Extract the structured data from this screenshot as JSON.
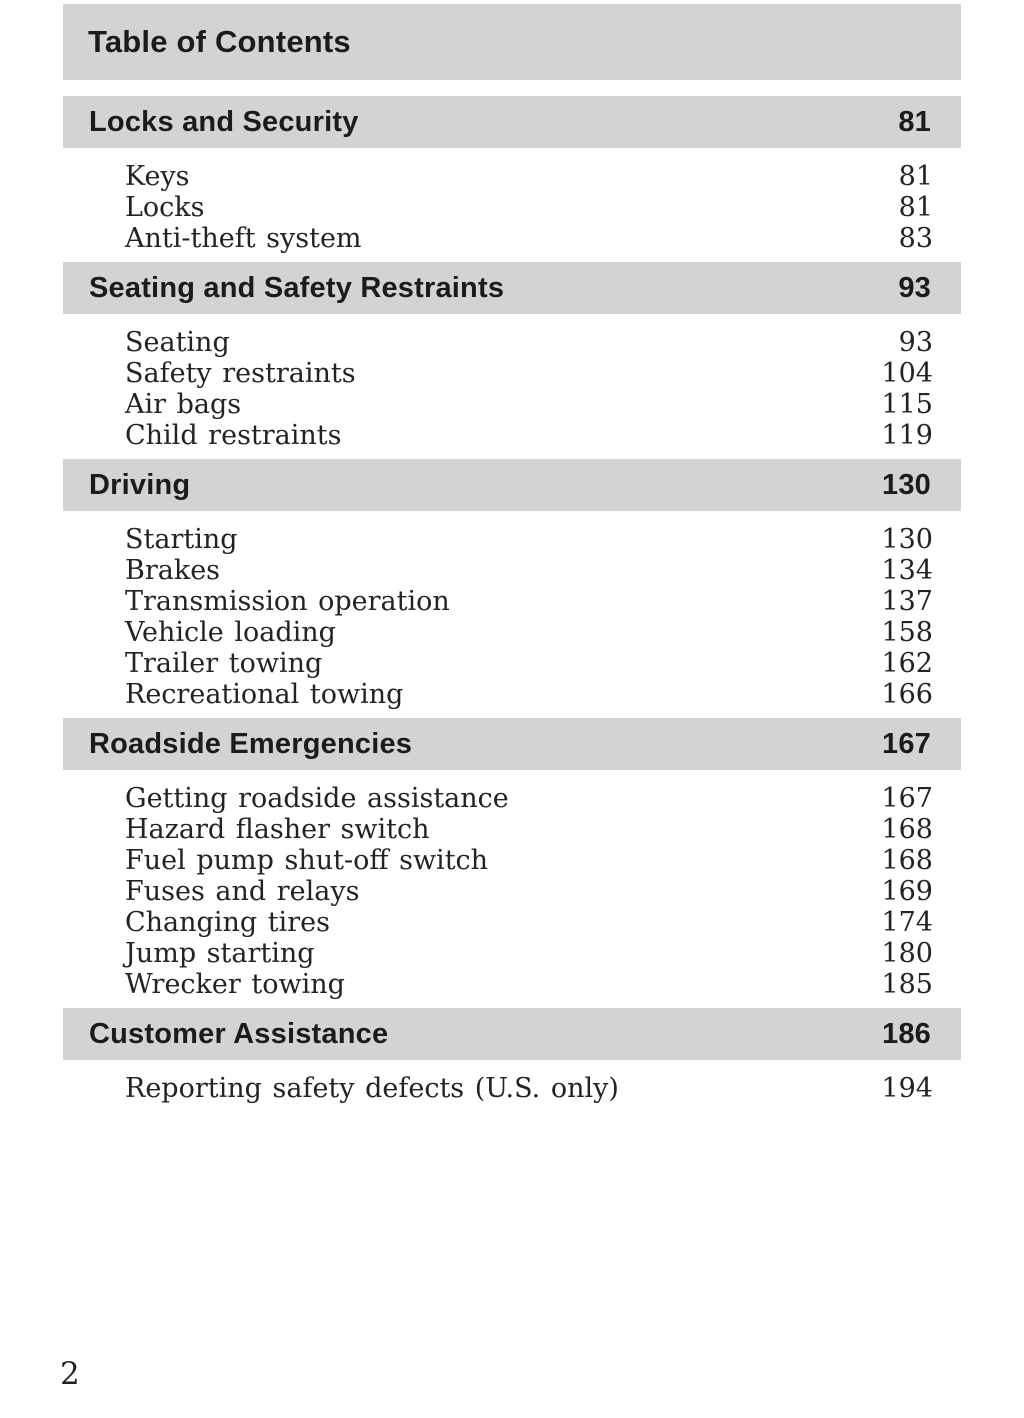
{
  "page": {
    "title": "Table of Contents",
    "page_number": "2",
    "colors": {
      "band_bg": "#d3d3d3",
      "heading_text": "#1b1b1b",
      "entry_text": "#232323"
    }
  },
  "sections": [
    {
      "label": "Locks and Security",
      "page": "81",
      "entries": [
        {
          "label": "Keys",
          "page": "81"
        },
        {
          "label": "Locks",
          "page": "81"
        },
        {
          "label": "Anti-theft system",
          "page": "83"
        }
      ]
    },
    {
      "label": "Seating and Safety Restraints",
      "page": "93",
      "entries": [
        {
          "label": "Seating",
          "page": "93"
        },
        {
          "label": "Safety restraints",
          "page": "104"
        },
        {
          "label": "Air bags",
          "page": "115"
        },
        {
          "label": "Child restraints",
          "page": "119"
        }
      ]
    },
    {
      "label": "Driving",
      "page": "130",
      "entries": [
        {
          "label": "Starting",
          "page": "130"
        },
        {
          "label": "Brakes",
          "page": "134"
        },
        {
          "label": "Transmission operation",
          "page": "137"
        },
        {
          "label": "Vehicle loading",
          "page": "158"
        },
        {
          "label": "Trailer towing",
          "page": "162"
        },
        {
          "label": "Recreational towing",
          "page": "166"
        }
      ]
    },
    {
      "label": "Roadside Emergencies",
      "page": "167",
      "entries": [
        {
          "label": "Getting roadside assistance",
          "page": "167"
        },
        {
          "label": "Hazard flasher switch",
          "page": "168"
        },
        {
          "label": "Fuel pump shut-off switch",
          "page": "168"
        },
        {
          "label": "Fuses and relays",
          "page": "169"
        },
        {
          "label": "Changing tires",
          "page": "174"
        },
        {
          "label": "Jump starting",
          "page": "180"
        },
        {
          "label": "Wrecker towing",
          "page": "185"
        }
      ]
    },
    {
      "label": "Customer Assistance",
      "page": "186",
      "entries": [
        {
          "label": "Reporting safety defects (U.S. only)",
          "page": "194"
        }
      ]
    }
  ]
}
